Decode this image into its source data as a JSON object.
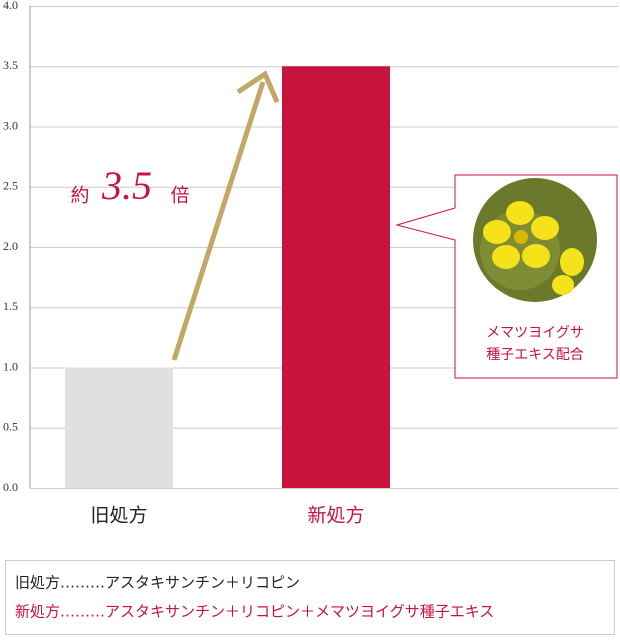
{
  "chart_data": {
    "type": "bar",
    "categories": [
      "旧処方",
      "新処方"
    ],
    "values": [
      1,
      3.5
    ],
    "colors": [
      "#e1e0de",
      "#c8143c"
    ],
    "label_colors": [
      "#222222",
      "#c8143c"
    ],
    "ylim": [
      0,
      4
    ],
    "yticks": [
      {
        "value": 0,
        "label": "0.0"
      },
      0.5,
      {
        "value": 1,
        "label": "1.0"
      },
      1.5,
      {
        "value": 2,
        "label": "2.0"
      },
      2.5,
      {
        "value": 3,
        "label": "3.0"
      },
      3.5,
      {
        "value": 4,
        "label": "4.0"
      }
    ],
    "grid": true,
    "annotation": {
      "prefix": "約",
      "figure": "3.5",
      "suffix": "倍"
    },
    "callout": {
      "lines": [
        "メマツヨイグサ",
        "種子エキス配合"
      ]
    },
    "legend_notes": [
      "旧処方………アスタキサンチン＋リコピン",
      "新処方………アスタキサンチン＋リコピン＋メマツヨイグサ種子エキス"
    ]
  }
}
